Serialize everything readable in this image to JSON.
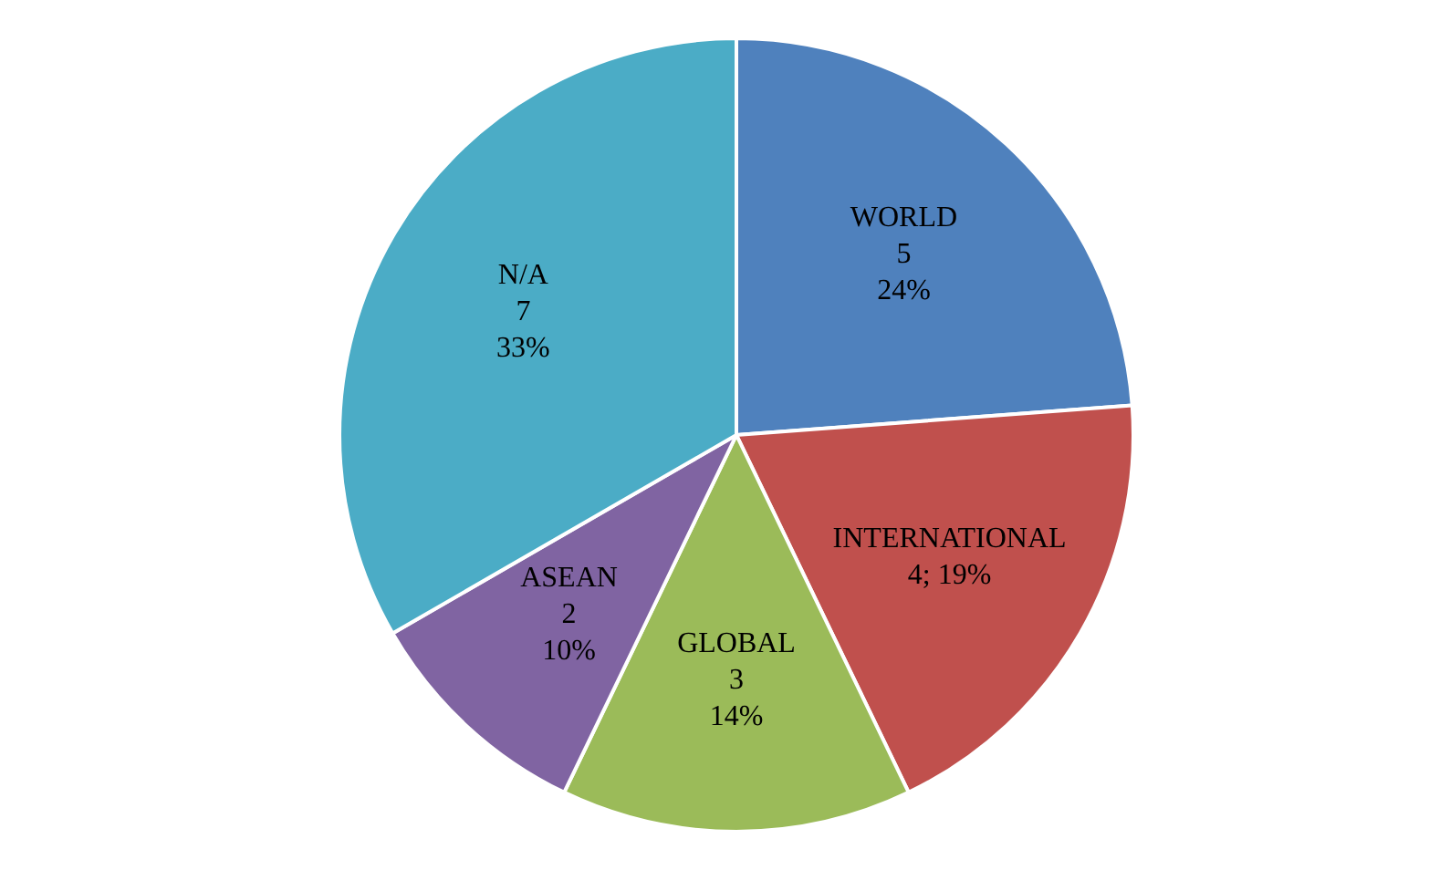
{
  "chart_data": {
    "type": "pie",
    "categories": [
      "WORLD",
      "INTERNATIONAL",
      "GLOBAL",
      "ASEAN",
      "N/A"
    ],
    "values": [
      5,
      4,
      3,
      2,
      7
    ],
    "colors": [
      "#4f81bd",
      "#c0504d",
      "#9bbb59",
      "#8064a2",
      "#4bacc6"
    ],
    "value_labels": [
      "5\n24%",
      "4; 19%",
      "3\n14%",
      "2\n10%",
      "7\n33%"
    ],
    "legend": false
  }
}
